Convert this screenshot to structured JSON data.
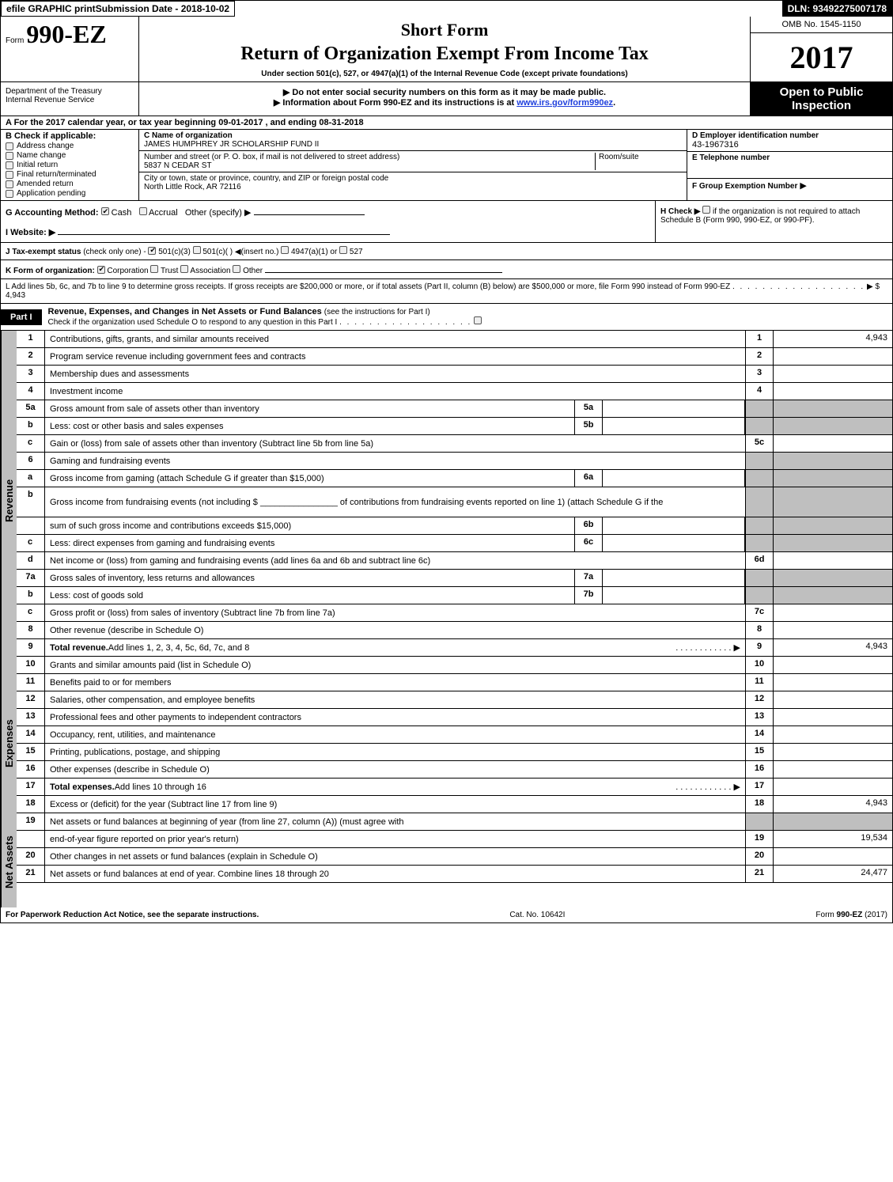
{
  "top": {
    "efile": "efile GRAPHIC print",
    "submission_date_label": "Submission Date - 2018-10-02",
    "dln": "DLN: 93492275007178"
  },
  "header": {
    "form_prefix": "Form",
    "form_number": "990-EZ",
    "short_form": "Short Form",
    "main_title": "Return of Organization Exempt From Income Tax",
    "subtitle": "Under section 501(c), 527, or 4947(a)(1) of the Internal Revenue Code (except private foundations)",
    "omb": "OMB No. 1545-1150",
    "year": "2017",
    "department": "Department of the Treasury",
    "irs": "Internal Revenue Service",
    "instr1": "▶ Do not enter social security numbers on this form as it may be made public.",
    "instr2_prefix": "▶ Information about Form 990-EZ and its instructions is at ",
    "instr2_link": "www.irs.gov/form990ez",
    "instr2_suffix": ".",
    "open_public": "Open to Public Inspection"
  },
  "a_line": {
    "label": "A  For the 2017 calendar year, or tax year beginning ",
    "begin": "09-01-2017",
    "middle": " , and ending ",
    "end": "08-31-2018"
  },
  "b": {
    "label": "B  Check if applicable:",
    "items": [
      {
        "label": "Address change",
        "checked": false
      },
      {
        "label": "Name change",
        "checked": false
      },
      {
        "label": "Initial return",
        "checked": false
      },
      {
        "label": "Final return/terminated",
        "checked": false
      },
      {
        "label": "Amended return",
        "checked": false
      },
      {
        "label": "Application pending",
        "checked": false
      }
    ]
  },
  "c": {
    "name_label": "C Name of organization",
    "name": "JAMES HUMPHREY JR SCHOLARSHIP FUND II",
    "street_label": "Number and street (or P. O. box, if mail is not delivered to street address)",
    "street": "5837 N CEDAR ST",
    "room_label": "Room/suite",
    "city_label": "City or town, state or province, country, and ZIP or foreign postal code",
    "city": "North Little Rock, AR  72116"
  },
  "d": {
    "label": "D Employer identification number",
    "value": "43-1967316"
  },
  "e": {
    "label": "E Telephone number",
    "value": ""
  },
  "f": {
    "label": "F Group Exemption Number",
    "arrow": "▶"
  },
  "g": {
    "label": "G Accounting Method:",
    "cash_checked": true,
    "cash": "Cash",
    "accrual_checked": false,
    "accrual": "Accrual",
    "other": "Other (specify) ▶"
  },
  "h": {
    "label": "H  Check ▶",
    "text": "if the organization is not required to attach Schedule B (Form 990, 990-EZ, or 990-PF).",
    "checked": false
  },
  "i": {
    "label": "I Website: ▶"
  },
  "j": {
    "label": "J Tax-exempt status",
    "note": "(check only one) - ",
    "opts": [
      {
        "label": "501(c)(3)",
        "checked": true
      },
      {
        "label": "501(c)(  ) ◀(insert no.)",
        "checked": false
      },
      {
        "label": "4947(a)(1) or",
        "checked": false
      },
      {
        "label": "527",
        "checked": false
      }
    ]
  },
  "k": {
    "label": "K Form of organization:",
    "opts": [
      {
        "label": "Corporation",
        "checked": true
      },
      {
        "label": "Trust",
        "checked": false
      },
      {
        "label": "Association",
        "checked": false
      },
      {
        "label": "Other",
        "checked": false
      }
    ]
  },
  "l": {
    "text": "L Add lines 5b, 6c, and 7b to line 9 to determine gross receipts. If gross receipts are $200,000 or more, or if total assets (Part II, column (B) below) are $500,000 or more, file Form 990 instead of Form 990-EZ",
    "arrow": "▶",
    "value": "$ 4,943"
  },
  "part1": {
    "label": "Part I",
    "title": "Revenue, Expenses, and Changes in Net Assets or Fund Balances",
    "title_note": " (see the instructions for Part I)",
    "subline": "Check if the organization used Schedule O to respond to any question in this Part I",
    "subline_checked": false
  },
  "sections": {
    "revenue": "Revenue",
    "expenses": "Expenses",
    "netassets": "Net Assets"
  },
  "lines": [
    {
      "sec": "revenue",
      "num": "1",
      "desc": "Contributions, gifts, grants, and similar amounts received",
      "right_num": "1",
      "right_val": "4,943"
    },
    {
      "sec": "revenue",
      "num": "2",
      "desc": "Program service revenue including government fees and contracts",
      "right_num": "2",
      "right_val": ""
    },
    {
      "sec": "revenue",
      "num": "3",
      "desc": "Membership dues and assessments",
      "right_num": "3",
      "right_val": ""
    },
    {
      "sec": "revenue",
      "num": "4",
      "desc": "Investment income",
      "right_num": "4",
      "right_val": ""
    },
    {
      "sec": "revenue",
      "num": "5a",
      "desc": "Gross amount from sale of assets other than inventory",
      "mid_num": "5a",
      "mid_val": "",
      "right_shaded": true
    },
    {
      "sec": "revenue",
      "num": "b",
      "indent": true,
      "desc": "Less: cost or other basis and sales expenses",
      "mid_num": "5b",
      "mid_val": "",
      "right_shaded": true
    },
    {
      "sec": "revenue",
      "num": "c",
      "indent": true,
      "desc": "Gain or (loss) from sale of assets other than inventory (Subtract line 5b from line 5a)",
      "right_num": "5c",
      "right_val": ""
    },
    {
      "sec": "revenue",
      "num": "6",
      "desc": "Gaming and fundraising events",
      "right_shaded": true
    },
    {
      "sec": "revenue",
      "num": "a",
      "indent": true,
      "desc": "Gross income from gaming (attach Schedule G if greater than $15,000)",
      "mid_num": "6a",
      "mid_val": "",
      "right_shaded": true
    },
    {
      "sec": "revenue",
      "num": "b",
      "indent": true,
      "desc": "Gross income from fundraising events (not including $ ________________ of contributions from fundraising events reported on line 1) (attach Schedule G if the",
      "right_shaded": true,
      "tall": true
    },
    {
      "sec": "revenue",
      "num": "",
      "indent": true,
      "desc": "sum of such gross income and contributions exceeds $15,000)",
      "mid_num": "6b",
      "mid_val": "",
      "right_shaded": true
    },
    {
      "sec": "revenue",
      "num": "c",
      "indent": true,
      "desc": "Less: direct expenses from gaming and fundraising events",
      "mid_num": "6c",
      "mid_val": "",
      "right_shaded": true
    },
    {
      "sec": "revenue",
      "num": "d",
      "indent": true,
      "desc": "Net income or (loss) from gaming and fundraising events (add lines 6a and 6b and subtract line 6c)",
      "right_num": "6d",
      "right_val": ""
    },
    {
      "sec": "revenue",
      "num": "7a",
      "desc": "Gross sales of inventory, less returns and allowances",
      "mid_num": "7a",
      "mid_val": "",
      "right_shaded": true
    },
    {
      "sec": "revenue",
      "num": "b",
      "indent": true,
      "desc": "Less: cost of goods sold",
      "mid_num": "7b",
      "mid_val": "",
      "right_shaded": true
    },
    {
      "sec": "revenue",
      "num": "c",
      "indent": true,
      "desc": "Gross profit or (loss) from sales of inventory (Subtract line 7b from line 7a)",
      "right_num": "7c",
      "right_val": ""
    },
    {
      "sec": "revenue",
      "num": "8",
      "desc": "Other revenue (describe in Schedule O)",
      "right_num": "8",
      "right_val": ""
    },
    {
      "sec": "revenue",
      "num": "9",
      "desc_bold": true,
      "desc": "Total revenue. ",
      "desc2": "Add lines 1, 2, 3, 4, 5c, 6d, 7c, and 8",
      "arrow": true,
      "right_num": "9",
      "right_val": "4,943",
      "last": true
    },
    {
      "sec": "expenses",
      "num": "10",
      "desc": "Grants and similar amounts paid (list in Schedule O)",
      "right_num": "10",
      "right_val": ""
    },
    {
      "sec": "expenses",
      "num": "11",
      "desc": "Benefits paid to or for members",
      "right_num": "11",
      "right_val": ""
    },
    {
      "sec": "expenses",
      "num": "12",
      "desc": "Salaries, other compensation, and employee benefits",
      "right_num": "12",
      "right_val": ""
    },
    {
      "sec": "expenses",
      "num": "13",
      "desc": "Professional fees and other payments to independent contractors",
      "right_num": "13",
      "right_val": ""
    },
    {
      "sec": "expenses",
      "num": "14",
      "desc": "Occupancy, rent, utilities, and maintenance",
      "right_num": "14",
      "right_val": ""
    },
    {
      "sec": "expenses",
      "num": "15",
      "desc": "Printing, publications, postage, and shipping",
      "right_num": "15",
      "right_val": ""
    },
    {
      "sec": "expenses",
      "num": "16",
      "desc": "Other expenses (describe in Schedule O)",
      "right_num": "16",
      "right_val": ""
    },
    {
      "sec": "expenses",
      "num": "17",
      "desc_bold": true,
      "desc": "Total expenses. ",
      "desc2": "Add lines 10 through 16",
      "arrow": true,
      "right_num": "17",
      "right_val": "",
      "last": true
    },
    {
      "sec": "netassets",
      "num": "18",
      "desc": "Excess or (deficit) for the year (Subtract line 17 from line 9)",
      "right_num": "18",
      "right_val": "4,943"
    },
    {
      "sec": "netassets",
      "num": "19",
      "desc": "Net assets or fund balances at beginning of year (from line 27, column (A)) (must agree with",
      "right_shaded": true
    },
    {
      "sec": "netassets",
      "num": "",
      "desc": "end-of-year figure reported on prior year's return)",
      "right_num": "19",
      "right_val": "19,534"
    },
    {
      "sec": "netassets",
      "num": "20",
      "desc": "Other changes in net assets or fund balances (explain in Schedule O)",
      "right_num": "20",
      "right_val": ""
    },
    {
      "sec": "netassets",
      "num": "21",
      "desc": "Net assets or fund balances at end of year. Combine lines 18 through 20",
      "right_num": "21",
      "right_val": "24,477",
      "last": true
    }
  ],
  "footer": {
    "left": "For Paperwork Reduction Act Notice, see the separate instructions.",
    "mid": "Cat. No. 10642I",
    "right_prefix": "Form ",
    "right_form": "990-EZ",
    "right_suffix": " (2017)"
  }
}
